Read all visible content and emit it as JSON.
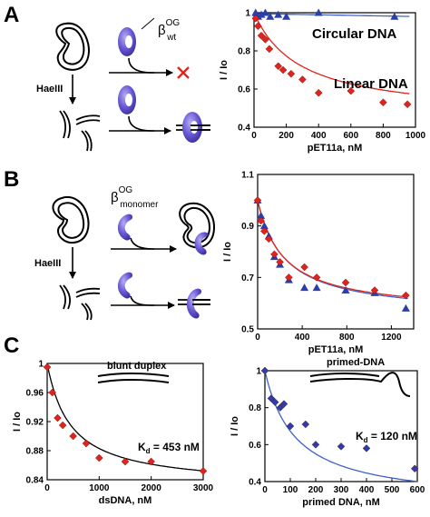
{
  "panels": {
    "A": {
      "letter": "A",
      "enzyme_label": "HaeIII",
      "protein_sym": "β",
      "protein_sup": "OG",
      "protein_sub": "wt",
      "chart_labels": {
        "circ": "Circular DNA",
        "lin": "Linear DNA"
      }
    },
    "B": {
      "letter": "B",
      "enzyme_label": "HaeIII",
      "protein_sym": "β",
      "protein_sup": "OG",
      "protein_sub": "monomer"
    },
    "C": {
      "letter": "C",
      "left_inset": "blunt duplex",
      "left_kd_k": "K",
      "left_kd_sub": "d",
      "left_kd_val": " = 453 nM",
      "right_inset": "primed-DNA",
      "right_kd_k": "K",
      "right_kd_sub": "d",
      "right_kd_val": " = 120 nM"
    }
  },
  "colors": {
    "red": "#e0231c",
    "blue": "#2b3fa8",
    "redline": "#e0231c",
    "blueline": "#3f62c8",
    "protein": "#6a5bd6"
  },
  "chart_data": [
    {
      "type": "scatter",
      "xlabel": "pET11a, nM",
      "ylabel": "I / Io",
      "xlim": [
        0,
        1000
      ],
      "ylim": [
        0.4,
        1.0
      ],
      "xticks": [
        0,
        200,
        400,
        600,
        800,
        1000
      ],
      "xtick_labels": [
        "0",
        "200",
        "400",
        "600",
        "800",
        "1000"
      ],
      "yticks": [
        0.4,
        0.6,
        0.8,
        1.0
      ],
      "ytick_labels": [
        "0.4",
        "0.6",
        "0.8",
        "1"
      ],
      "series": [
        {
          "name": "Circular DNA",
          "marker": "triangle",
          "color": "#2b3fa8",
          "x": [
            10,
            25,
            45,
            70,
            100,
            150,
            200,
            400,
            870
          ],
          "y": [
            1.0,
            0.98,
            0.99,
            1.0,
            0.98,
            0.99,
            0.98,
            1.0,
            0.98
          ]
        },
        {
          "name": "Linear DNA",
          "marker": "diamond",
          "color": "#e0231c",
          "x": [
            10,
            25,
            45,
            70,
            95,
            150,
            180,
            230,
            300,
            400,
            600,
            800,
            950
          ],
          "y": [
            0.97,
            0.93,
            0.88,
            0.86,
            0.81,
            0.72,
            0.7,
            0.68,
            0.65,
            0.58,
            0.59,
            0.53,
            0.52
          ]
        }
      ],
      "fits": [
        {
          "color": "#3f62c8",
          "kind": "flat",
          "y0": 0.995,
          "y1": 0.98
        },
        {
          "color": "#e0231c",
          "kind": "hyperbola",
          "ymin": 0.45,
          "kd": 285
        }
      ]
    },
    {
      "type": "scatter",
      "xlabel": "pET11a, nM",
      "ylabel": "I / Io",
      "xlim": [
        0,
        1400
      ],
      "ylim": [
        0.5,
        1.1
      ],
      "xticks": [
        0,
        400,
        800,
        1200
      ],
      "xtick_labels": [
        "0",
        "400",
        "800",
        "1200"
      ],
      "yticks": [
        0.5,
        0.7,
        0.9,
        1.1
      ],
      "ytick_labels": [
        "0.5",
        "0.7",
        "0.9",
        "1.1"
      ],
      "series": [
        {
          "name": "",
          "marker": "triangle",
          "color": "#2b3fa8",
          "x": [
            0,
            30,
            60,
            100,
            150,
            200,
            280,
            420,
            530,
            790,
            1050,
            1330
          ],
          "y": [
            1.0,
            0.94,
            0.9,
            0.86,
            0.78,
            0.75,
            0.69,
            0.66,
            0.66,
            0.65,
            0.64,
            0.58
          ]
        },
        {
          "name": "",
          "marker": "diamond",
          "color": "#e0231c",
          "x": [
            0,
            30,
            60,
            100,
            150,
            200,
            280,
            420,
            530,
            790,
            1050,
            1330
          ],
          "y": [
            1.0,
            0.92,
            0.88,
            0.85,
            0.79,
            0.76,
            0.7,
            0.74,
            0.7,
            0.68,
            0.65,
            0.63
          ]
        }
      ],
      "fits": [
        {
          "color": "#3f62c8",
          "kind": "hyperbola",
          "ymin": 0.55,
          "kd": 240
        },
        {
          "color": "#e0231c",
          "kind": "hyperbola",
          "ymin": 0.56,
          "kd": 230
        }
      ]
    },
    {
      "type": "scatter",
      "xlabel": "dsDNA, nM",
      "ylabel": "I / Io",
      "xlim": [
        0,
        3000
      ],
      "ylim": [
        0.84,
        1.0
      ],
      "xticks": [
        0,
        1000,
        2000,
        3000
      ],
      "xtick_labels": [
        "0",
        "1000",
        "2000",
        "3000"
      ],
      "yticks": [
        0.84,
        0.88,
        0.92,
        0.96,
        1.0
      ],
      "ytick_labels": [
        "0.84",
        "0.88",
        "0.92",
        "0.96",
        "1"
      ],
      "series": [
        {
          "name": "",
          "marker": "diamond",
          "color": "#e0231c",
          "x": [
            0,
            100,
            200,
            300,
            500,
            750,
            1000,
            1500,
            2000,
            3000
          ],
          "y": [
            0.995,
            0.96,
            0.925,
            0.915,
            0.9,
            0.89,
            0.87,
            0.865,
            0.865,
            0.852
          ]
        }
      ],
      "fits": [
        {
          "color": "#000000",
          "kind": "hyperbola",
          "ymin": 0.83,
          "kd": 453
        }
      ]
    },
    {
      "type": "scatter",
      "xlabel": "primed DNA, nM",
      "ylabel": "I / Io",
      "xlim": [
        0,
        600
      ],
      "ylim": [
        0.4,
        1.0
      ],
      "xticks": [
        0,
        100,
        200,
        300,
        400,
        500,
        600
      ],
      "xtick_labels": [
        "0",
        "100",
        "200",
        "300",
        "400",
        "500",
        "600"
      ],
      "yticks": [
        0.4,
        0.6,
        0.8,
        1.0
      ],
      "ytick_labels": [
        "0.4",
        "0.6",
        "0.8",
        "1"
      ],
      "series": [
        {
          "name": "",
          "marker": "diamond",
          "color": "#2b3fa8",
          "x": [
            0,
            25,
            40,
            60,
            75,
            100,
            160,
            200,
            300,
            400,
            590
          ],
          "y": [
            1.0,
            0.85,
            0.83,
            0.8,
            0.82,
            0.7,
            0.71,
            0.6,
            0.59,
            0.58,
            0.47
          ]
        }
      ],
      "fits": [
        {
          "color": "#3f62c8",
          "kind": "hyperbola",
          "ymin": 0.28,
          "kd": 120
        }
      ]
    }
  ]
}
